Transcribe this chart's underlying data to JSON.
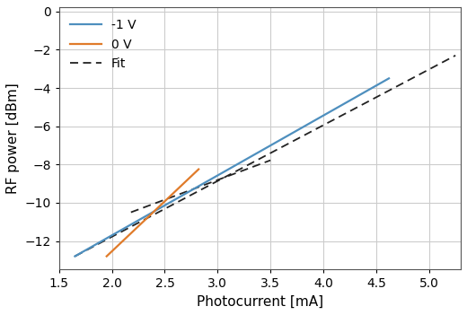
{
  "xlabel": "Photocurrent [mA]",
  "ylabel": "RF power [dBm]",
  "xlim": [
    1.5,
    5.3
  ],
  "ylim": [
    -13.5,
    0.2
  ],
  "xticks": [
    1.5,
    2.0,
    2.5,
    3.0,
    3.5,
    4.0,
    4.5,
    5.0
  ],
  "yticks": [
    0,
    -2,
    -4,
    -6,
    -8,
    -10,
    -12
  ],
  "blue_line": [
    [
      1.65,
      -12.8
    ],
    [
      4.62,
      -3.5
    ]
  ],
  "blue_fit_line": [
    [
      1.65,
      -12.8
    ],
    [
      5.25,
      -2.3
    ]
  ],
  "orange_line": [
    [
      1.95,
      -12.8
    ],
    [
      2.82,
      -8.25
    ]
  ],
  "orange_fit_line": [
    [
      2.18,
      -10.5
    ],
    [
      3.5,
      -7.78
    ]
  ],
  "line_color_blue": "#4e8fbe",
  "line_color_orange": "#e07b2a",
  "line_color_fit": "#222222",
  "legend_labels": [
    "-1 V",
    "0 V",
    "Fit"
  ],
  "figsize": [
    5.2,
    3.51
  ],
  "dpi": 100,
  "grid_color": "#cccccc",
  "bg_color": "#ffffff",
  "linewidth_main": 1.6,
  "linewidth_fit": 1.3
}
